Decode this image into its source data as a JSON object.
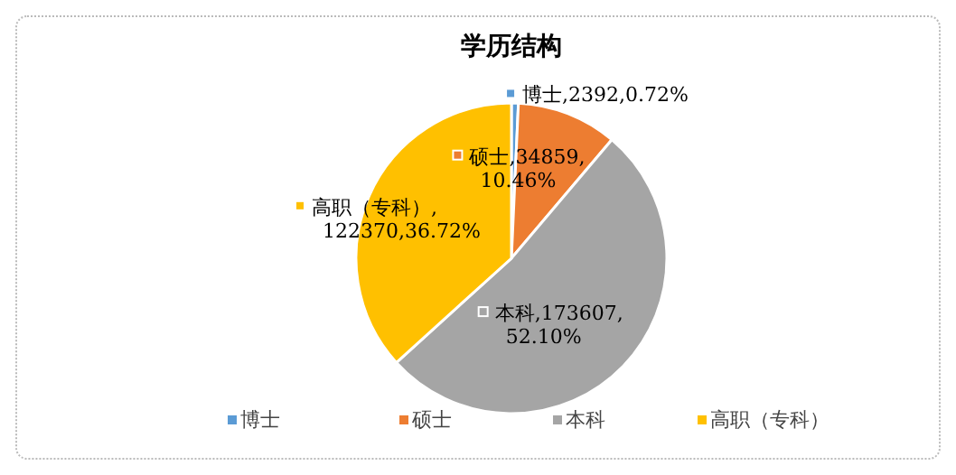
{
  "chart_data": {
    "type": "pie",
    "title": "学历结构",
    "categories": [
      "博士",
      "硕士",
      "本科",
      "高职（专科）"
    ],
    "values": [
      2392,
      34859,
      173607,
      122370
    ],
    "colors": [
      "#5b9bd5",
      "#ed7d31",
      "#a5a5a5",
      "#ffc000"
    ],
    "value_labels": [
      "博士,2392,0.72%",
      "硕士,34859,\n10.46%",
      "本科,173607,\n52.10%",
      "高职（专科）,\n122370,36.72%"
    ],
    "legend": "bottom"
  }
}
